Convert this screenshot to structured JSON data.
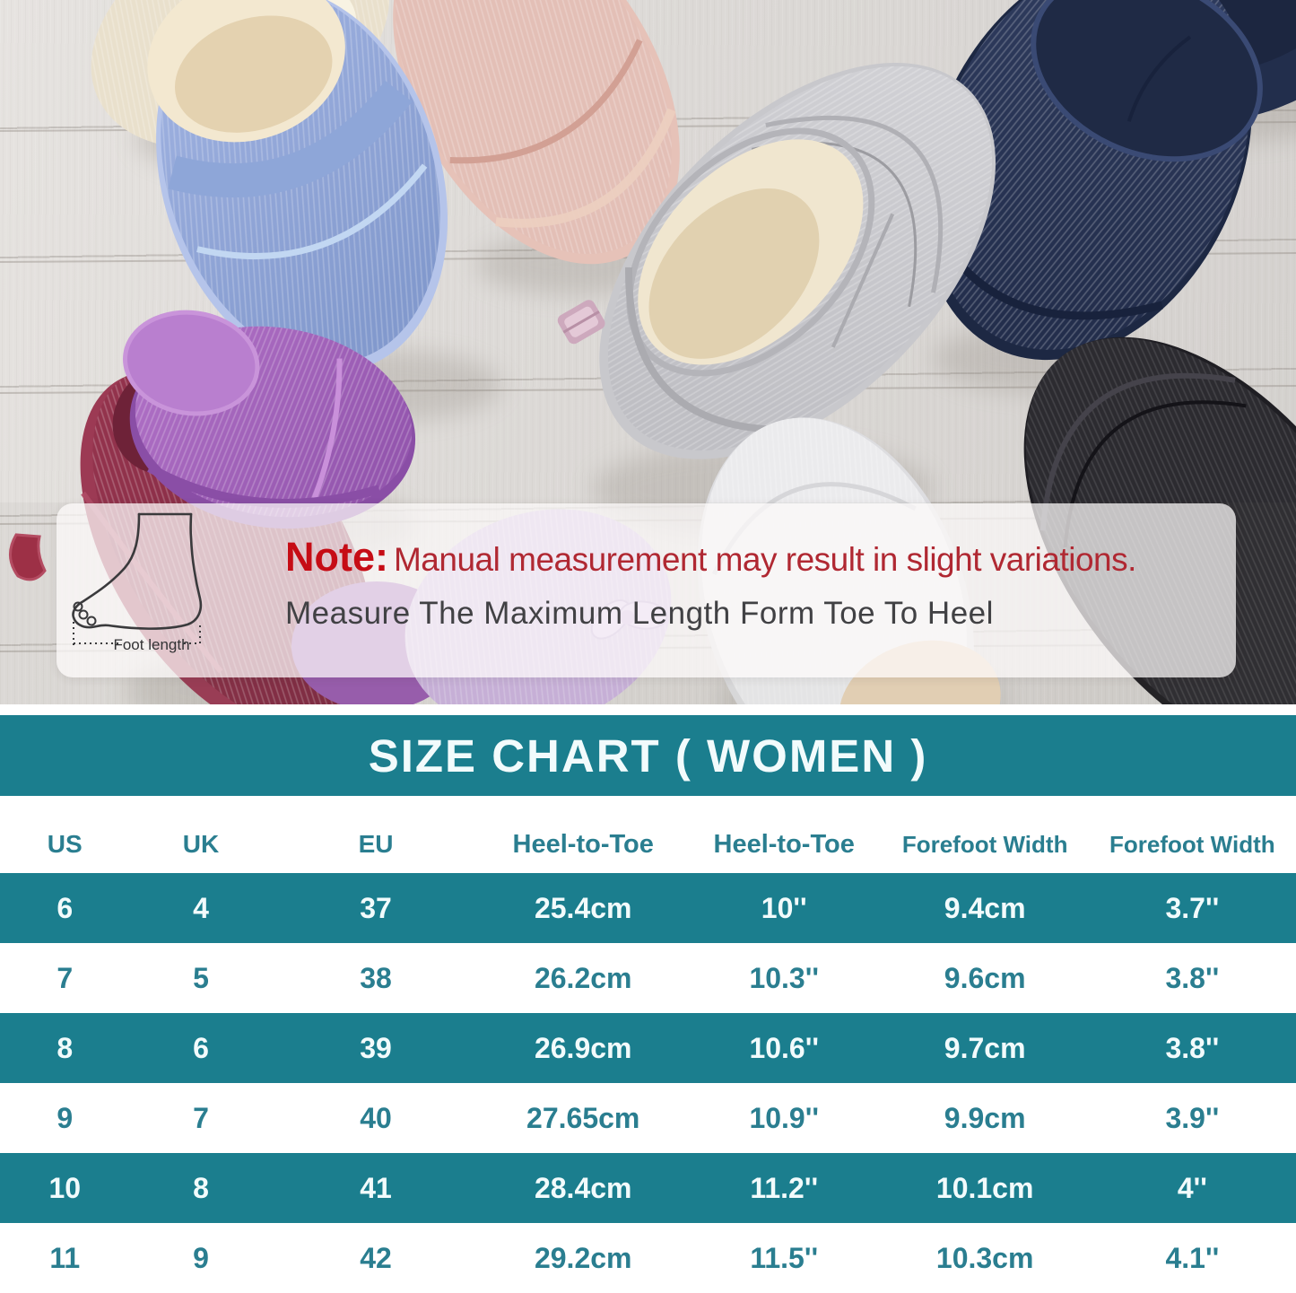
{
  "photo": {
    "description": "assorted cotton knit closed-back slippers arranged on a light wood floor",
    "slippers": [
      "cream",
      "blue",
      "pink",
      "gray",
      "navy",
      "navy-dark",
      "purple",
      "burgundy",
      "lavender",
      "white",
      "black"
    ]
  },
  "note_banner": {
    "note_label": "Note:",
    "note_text": "Manual measurement may result in slight variations.",
    "subtext": "Measure The Maximum Length Form Toe To Heel",
    "foot_caption": "Foot length"
  },
  "size_chart": {
    "title": "SIZE CHART ( WOMEN )",
    "columns": [
      "US",
      "UK",
      "EU",
      "Heel-to-Toe",
      "Heel-to-Toe",
      "Forefoot Width",
      "Forefoot Width"
    ],
    "rows": [
      [
        "6",
        "4",
        "37",
        "25.4cm",
        "10''",
        "9.4cm",
        "3.7''"
      ],
      [
        "7",
        "5",
        "38",
        "26.2cm",
        "10.3''",
        "9.6cm",
        "3.8''"
      ],
      [
        "8",
        "6",
        "39",
        "26.9cm",
        "10.6''",
        "9.7cm",
        "3.8''"
      ],
      [
        "9",
        "7",
        "40",
        "27.65cm",
        "10.9''",
        "9.9cm",
        "3.9''"
      ],
      [
        "10",
        "8",
        "41",
        "28.4cm",
        "11.2''",
        "10.1cm",
        "4''"
      ],
      [
        "11",
        "9",
        "42",
        "29.2cm",
        "11.5''",
        "10.3cm",
        "4.1''"
      ]
    ]
  },
  "colors": {
    "accent": "#1b7e8e",
    "accent_text": "#f2fbfc",
    "row_text": "#2a7e90",
    "note_red": "#c60c15",
    "note_red_2": "#b02832",
    "subtext": "#414144"
  }
}
